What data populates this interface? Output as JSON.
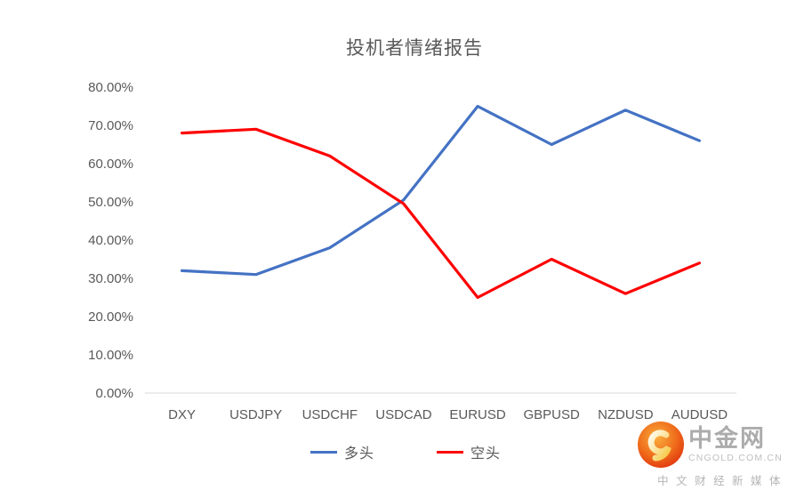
{
  "chart_data": {
    "type": "line",
    "title": "投机者情绪报告",
    "categories": [
      "DXY",
      "USDJPY",
      "USDCHF",
      "USDCAD",
      "EURUSD",
      "GBPUSD",
      "NZDUSD",
      "AUDUSD"
    ],
    "series": [
      {
        "name": "多头",
        "color": "#4472C4",
        "values": [
          32,
          31,
          38,
          50.5,
          75,
          65,
          74,
          66
        ]
      },
      {
        "name": "空头",
        "color": "#FF0000",
        "values": [
          68,
          69,
          62,
          49.5,
          25,
          35,
          26,
          34
        ]
      }
    ],
    "ylim": [
      0,
      80
    ],
    "yticks": [
      {
        "value": 0,
        "label": "0.00%"
      },
      {
        "value": 10,
        "label": "10.00%"
      },
      {
        "value": 20,
        "label": "20.00%"
      },
      {
        "value": 30,
        "label": "30.00%"
      },
      {
        "value": 40,
        "label": "40.00%"
      },
      {
        "value": 50,
        "label": "50.00%"
      },
      {
        "value": 60,
        "label": "60.00%"
      },
      {
        "value": 70,
        "label": "70.00%"
      },
      {
        "value": 80,
        "label": "80.00%"
      }
    ],
    "grid": false,
    "legend_position": "bottom"
  },
  "colors": {
    "axis_line": "#D9D9D9",
    "tick_text": "#595959",
    "title_text": "#595959"
  },
  "logo": {
    "brand": "中金网",
    "domain": "CNGOLD.COM.CN",
    "tagline": "中 文 财 经 新 媒 体"
  }
}
